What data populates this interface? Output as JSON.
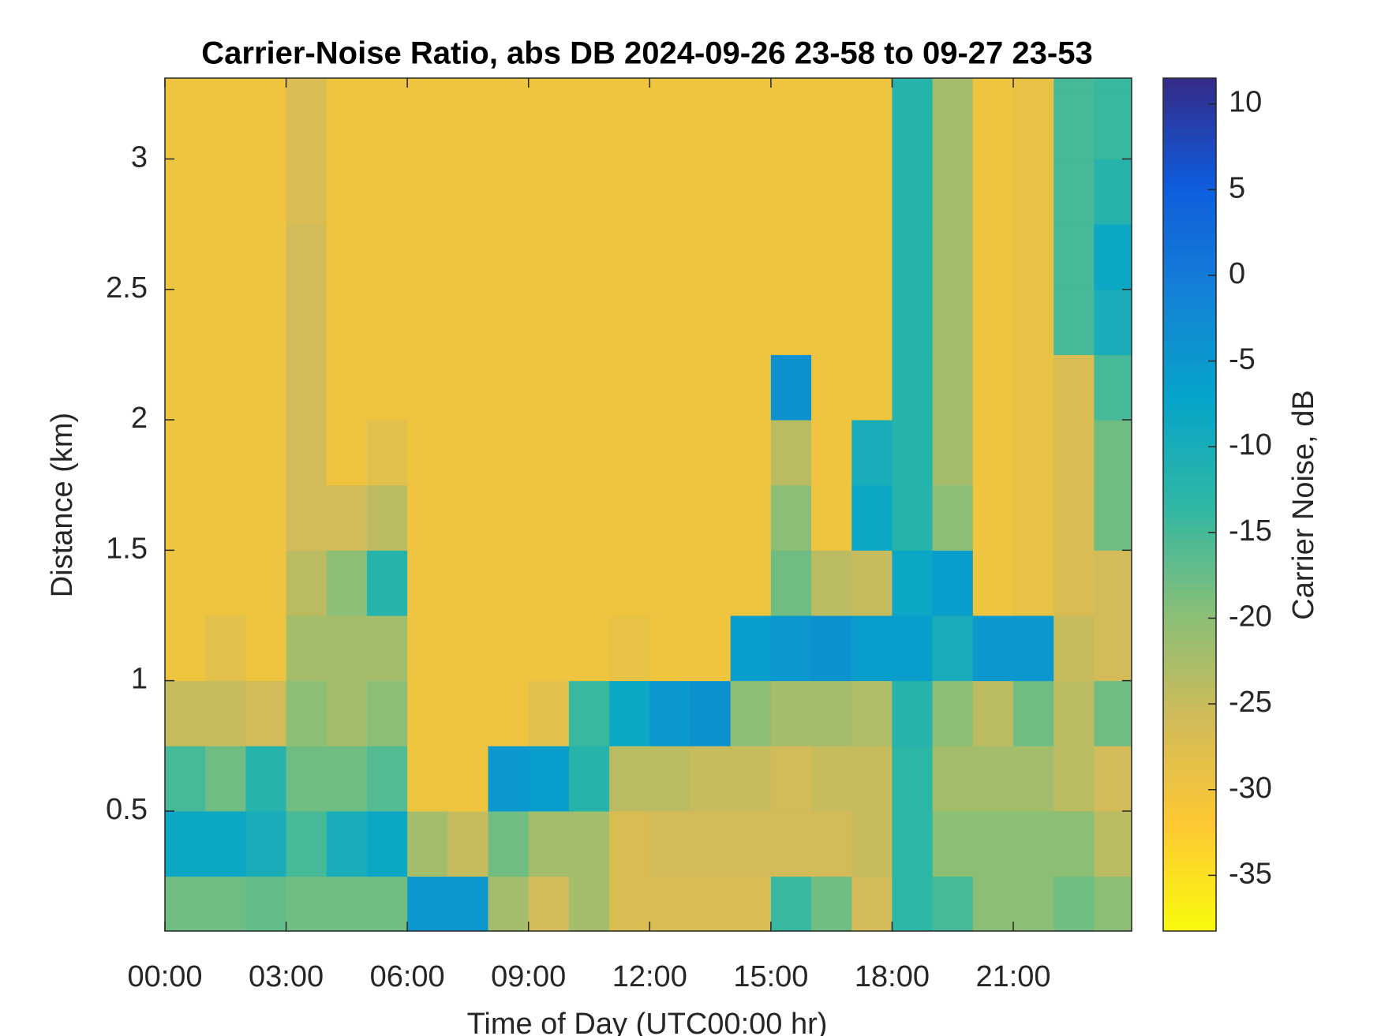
{
  "chart_data": {
    "type": "heatmap",
    "title": "Carrier-Noise Ratio, abs DB 2024-09-26 23-58 to 09-27 23-53",
    "x_label": "Time of Day (UTC00:00 hr)",
    "y_label": "Distance (km)",
    "colorbar_label": "Carrier Noise, dB",
    "xlim": [
      0,
      23.93
    ],
    "ylim": [
      0.04,
      3.31
    ],
    "clim": [
      -38.25,
      11.5
    ],
    "xticks": [
      {
        "value": 0,
        "label": "00:00"
      },
      {
        "value": 3,
        "label": "03:00"
      },
      {
        "value": 6,
        "label": "06:00"
      },
      {
        "value": 9,
        "label": "09:00"
      },
      {
        "value": 12,
        "label": "12:00"
      },
      {
        "value": 15,
        "label": "15:00"
      },
      {
        "value": 18,
        "label": "18:00"
      },
      {
        "value": 21,
        "label": "21:00"
      }
    ],
    "yticks": [
      0.5,
      1,
      1.5,
      2,
      2.5,
      3
    ],
    "cticks": [
      -35,
      -30,
      -25,
      -20,
      -15,
      -10,
      -5,
      0,
      5,
      10
    ],
    "colormap": [
      "#f9fb0e",
      "#fec832",
      "#d1bb59",
      "#87bf77",
      "#2eb7a4",
      "#06a4ca",
      "#1481d6",
      "#0f5cdd",
      "#352a87"
    ],
    "x_edges": [
      0,
      1,
      2,
      3,
      4,
      5,
      6,
      7,
      8,
      9,
      10,
      11,
      12,
      13,
      14,
      15,
      16,
      17,
      18,
      19,
      20,
      21,
      22,
      23,
      23.93
    ],
    "y_edges": [
      0.04,
      0.25,
      0.5,
      0.75,
      1,
      1.25,
      1.5,
      1.75,
      2,
      2.25,
      2.5,
      2.75,
      3,
      3.25,
      3.31
    ],
    "values": [
      [
        -18,
        -8,
        -15,
        -25,
        -30,
        -30,
        -30,
        -30,
        -30,
        -30,
        -30,
        -30,
        -30,
        -30
      ],
      [
        -18,
        -8,
        -18,
        -25,
        -28,
        -30,
        -30,
        -30,
        -30,
        -30,
        -30,
        -30,
        -30,
        -30
      ],
      [
        -17,
        -10,
        -12,
        -26,
        -30,
        -30,
        -30,
        -30,
        -30,
        -30,
        -30,
        -30,
        -30,
        -30
      ],
      [
        -18,
        -15,
        -18,
        -20,
        -22,
        -24,
        -26,
        -26,
        -26,
        -26,
        -26,
        -27,
        -27,
        -27
      ],
      [
        -18,
        -10,
        -18,
        -22,
        -22,
        -20,
        -26,
        -30,
        -30,
        -30,
        -30,
        -30,
        -30,
        -30
      ],
      [
        -18,
        -8,
        -16,
        -20,
        -22,
        -12,
        -24,
        -28,
        -30,
        -30,
        -30,
        -30,
        -30,
        -30
      ],
      [
        -5,
        -22,
        -30,
        -30,
        -30,
        -30,
        -30,
        -30,
        -30,
        -30,
        -30,
        -30,
        -30,
        -30
      ],
      [
        -5,
        -25,
        -30,
        -30,
        -30,
        -30,
        -30,
        -30,
        -30,
        -30,
        -30,
        -30,
        -30,
        -30
      ],
      [
        -22,
        -18,
        -5,
        -30,
        -30,
        -30,
        -30,
        -30,
        -30,
        -30,
        -30,
        -30,
        -30,
        -30
      ],
      [
        -26,
        -22,
        -6,
        -28,
        -30,
        -30,
        -30,
        -30,
        -30,
        -30,
        -30,
        -30,
        -30,
        -30
      ],
      [
        -22,
        -22,
        -12,
        -14,
        -30,
        -30,
        -30,
        -30,
        -30,
        -30,
        -30,
        -30,
        -30,
        -30
      ],
      [
        -27,
        -27,
        -24,
        -8,
        -29,
        -30,
        -30,
        -30,
        -30,
        -30,
        -30,
        -30,
        -30,
        -30
      ],
      [
        -27,
        -26,
        -24,
        -5,
        -30,
        -30,
        -30,
        -30,
        -30,
        -30,
        -30,
        -30,
        -30,
        -30
      ],
      [
        -27,
        -26,
        -25,
        -4,
        -30,
        -30,
        -30,
        -30,
        -30,
        -30,
        -30,
        -30,
        -30,
        -30
      ],
      [
        -27,
        -26,
        -25,
        -20,
        -6,
        -30,
        -30,
        -30,
        -30,
        -30,
        -30,
        -30,
        -30,
        -30
      ],
      [
        -14,
        -26,
        -26,
        -22,
        -5,
        -18,
        -20,
        -24,
        -4,
        -30,
        -30,
        -30,
        -30,
        -30
      ],
      [
        -18,
        -26,
        -25,
        -22,
        -4,
        -24,
        -30,
        -30,
        -30,
        -30,
        -30,
        -30,
        -30,
        -30
      ],
      [
        -26,
        -25,
        -25,
        -23,
        -6,
        -25,
        -8,
        -10,
        -30,
        -30,
        -30,
        -30,
        -30,
        -30
      ],
      [
        -13,
        -13,
        -13,
        -12,
        -6,
        -8,
        -12,
        -12,
        -12,
        -12,
        -12,
        -12,
        -12,
        -12
      ],
      [
        -15,
        -20,
        -22,
        -20,
        -10,
        -6,
        -20,
        -22,
        -22,
        -22,
        -22,
        -22,
        -22,
        -22
      ],
      [
        -20,
        -20,
        -22,
        -24,
        -5,
        -30,
        -30,
        -30,
        -30,
        -30,
        -30,
        -30,
        -30,
        -30
      ],
      [
        -20,
        -20,
        -22,
        -18,
        -5,
        -29,
        -29,
        -29,
        -29,
        -29,
        -29,
        -29,
        -29,
        -29
      ],
      [
        -18,
        -20,
        -24,
        -24,
        -25,
        -27,
        -27,
        -27,
        -27,
        -15,
        -15,
        -15,
        -15,
        -15
      ],
      [
        -20,
        -24,
        -26,
        -18,
        -26,
        -26,
        -18,
        -18,
        -15,
        -10,
        -8,
        -12,
        -14,
        -14
      ]
    ]
  }
}
